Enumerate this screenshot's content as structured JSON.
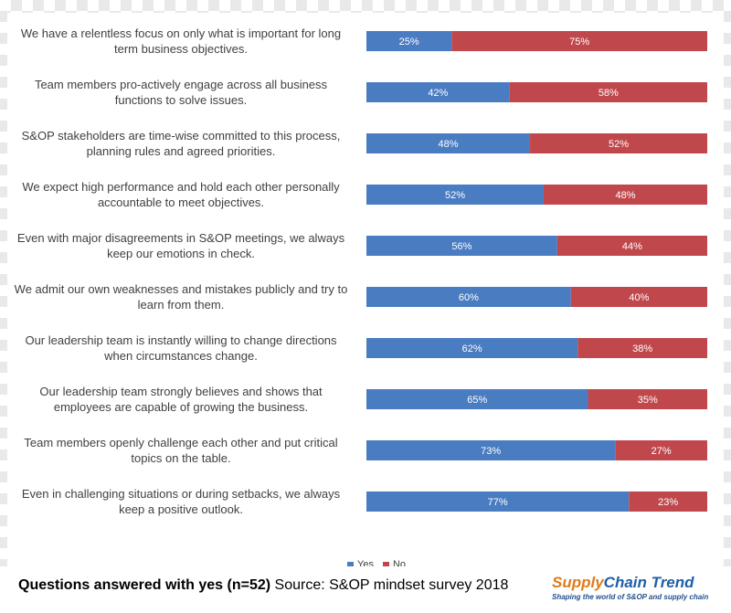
{
  "chart_data": {
    "type": "bar",
    "orientation": "horizontal",
    "stacked": true,
    "categories": [
      "We have a relentless focus on only what is important for long term business objectives.",
      "Team members pro-actively engage across all business functions to solve issues.",
      "S&OP stakeholders are time-wise committed to this process, planning rules and agreed priorities.",
      "We expect high performance and hold each other personally accountable to meet objectives.",
      "Even with major disagreements in S&OP meetings, we always keep our emotions in check.",
      "We admit our own weaknesses and mistakes publicly and try to learn from them.",
      "Our leadership team is instantly willing to change directions when circumstances change.",
      "Our leadership team strongly believes and shows that employees are capable of growing the business.",
      "Team members openly challenge each other and put critical topics on the table.",
      "Even in challenging situations or during setbacks, we always keep a positive outlook."
    ],
    "series": [
      {
        "name": "Yes",
        "color": "#4a7cc2",
        "values": [
          25,
          42,
          48,
          52,
          56,
          60,
          62,
          65,
          73,
          77
        ]
      },
      {
        "name": "No",
        "color": "#c0484d",
        "values": [
          75,
          58,
          52,
          48,
          44,
          40,
          38,
          35,
          27,
          23
        ]
      }
    ],
    "xlim": [
      0,
      100
    ],
    "unit": "%",
    "legend_position": "bottom",
    "grid": false
  },
  "footer": {
    "bold_text": "Questions answered with yes (n=52)",
    "source_text": "Source: S&OP mindset survey 2018"
  },
  "logo": {
    "title_part1": "Supply",
    "title_part2": "Chain Trend",
    "tagline": "Shaping the world of S&OP and supply chain"
  }
}
